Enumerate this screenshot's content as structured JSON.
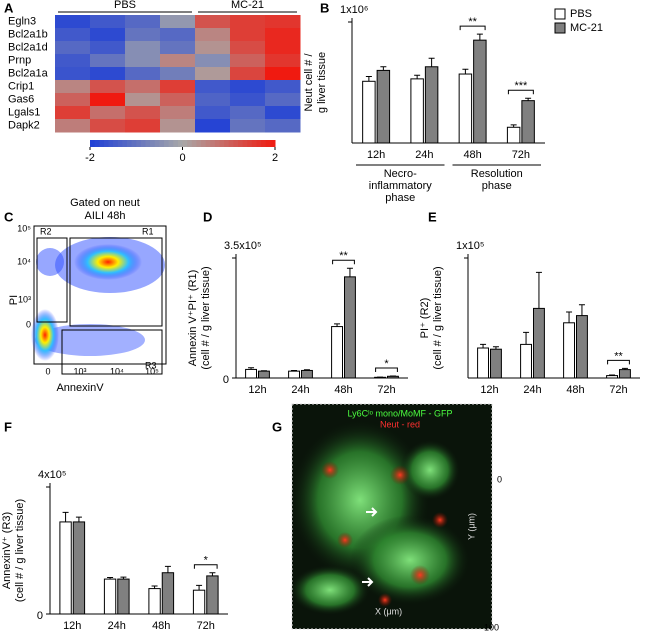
{
  "panel_labels": [
    "A",
    "B",
    "C",
    "D",
    "E",
    "F",
    "G"
  ],
  "chart_data": [
    {
      "type": "heatmap",
      "rows": [
        "Egln3",
        "Bcl2a1b",
        "Bcl2a1d",
        "Prnp",
        "Bcl2a1a",
        "Crip1",
        "Gas6",
        "Lgals1",
        "Dapk2"
      ],
      "groups": [
        {
          "name": "PBS",
          "columns": 4
        },
        {
          "name": "MC-21",
          "columns": 3
        }
      ],
      "values": [
        [
          -1.8,
          -1.5,
          -1.2,
          -0.3,
          1.2,
          1.5,
          1.6
        ],
        [
          -1.5,
          -1.8,
          -1.0,
          -1.2,
          0.5,
          1.5,
          1.8
        ],
        [
          -1.2,
          -1.5,
          -0.5,
          -1.0,
          0.3,
          1.3,
          1.8
        ],
        [
          -1.5,
          -1.0,
          -0.5,
          0.5,
          -0.5,
          1.0,
          1.6
        ],
        [
          -1.6,
          -1.8,
          -1.2,
          -0.8,
          0.2,
          1.4,
          2.0
        ],
        [
          0.5,
          1.2,
          0.8,
          1.5,
          -1.5,
          -1.8,
          -1.5
        ],
        [
          1.0,
          2.0,
          0.3,
          1.0,
          -1.3,
          -1.6,
          -1.2
        ],
        [
          1.5,
          0.8,
          1.2,
          0.6,
          -1.5,
          -1.2,
          -1.8
        ],
        [
          0.6,
          1.3,
          1.5,
          0.3,
          -1.9,
          -1.0,
          -1.2
        ]
      ],
      "colors": [
        "#1f3fd6",
        "#a8a8a8",
        "#f01a10"
      ],
      "clim": [
        -2,
        2
      ],
      "cticks": [
        -2,
        0,
        2
      ]
    },
    {
      "type": "bar",
      "categories": [
        "12h",
        "24h",
        "48h",
        "72h"
      ],
      "ylabel": [
        "Neut cell # /",
        "g liver tissue"
      ],
      "ylim": [
        0,
        1000000
      ],
      "yticks": [
        {
          "value": 1000000,
          "label": "1x10⁶"
        }
      ],
      "series": [
        {
          "name": "PBS",
          "color": "#ffffff",
          "values": [
            510000,
            530000,
            570000,
            130000
          ],
          "errors": [
            40000,
            30000,
            40000,
            20000
          ]
        },
        {
          "name": "MC-21",
          "color": "#808080",
          "values": [
            600000,
            630000,
            850000,
            350000
          ],
          "errors": [
            30000,
            70000,
            50000,
            20000
          ]
        }
      ],
      "significance": [
        {
          "category": "48h",
          "label": "**"
        },
        {
          "category": "72h",
          "label": "***"
        }
      ],
      "phases": [
        {
          "lines": [
            "Necro-",
            "inflammatory",
            "phase"
          ],
          "categories": [
            "12h",
            "24h"
          ]
        },
        {
          "lines": [
            "Resolution",
            "phase"
          ],
          "categories": [
            "48h",
            "72h"
          ]
        }
      ],
      "legend": "top-right"
    },
    {
      "type": "bar",
      "categories": [
        "12h",
        "24h",
        "48h",
        "72h"
      ],
      "ylabel": [
        "Annexin V⁺PI⁺ (R1)",
        "(cell # / g liver tissue)"
      ],
      "ylim": [
        0,
        350000
      ],
      "yticks": [
        0,
        {
          "value": 350000,
          "label": "3.5x10⁵"
        }
      ],
      "series": [
        {
          "name": "PBS",
          "color": "#ffffff",
          "values": [
            25000,
            20000,
            150000,
            2000
          ],
          "errors": [
            5000,
            2000,
            8000,
            500
          ]
        },
        {
          "name": "MC-21",
          "color": "#808080",
          "values": [
            20000,
            22000,
            295000,
            5000
          ],
          "errors": [
            1000,
            2000,
            25000,
            1000
          ]
        }
      ],
      "significance": [
        {
          "category": "48h",
          "label": "**"
        },
        {
          "category": "72h",
          "label": "*"
        }
      ]
    },
    {
      "type": "bar",
      "categories": [
        "12h",
        "24h",
        "48h",
        "72h"
      ],
      "ylabel": [
        "PI⁺ (R2)",
        "(cell # / g liver tissue)"
      ],
      "ylim": [
        0,
        100000
      ],
      "yticks": [
        {
          "value": 100000,
          "label": "1x10⁵"
        }
      ],
      "series": [
        {
          "name": "PBS",
          "color": "#ffffff",
          "values": [
            25000,
            28000,
            46000,
            2000
          ],
          "errors": [
            3000,
            10000,
            9000,
            500
          ]
        },
        {
          "name": "MC-21",
          "color": "#808080",
          "values": [
            24000,
            58000,
            52000,
            7000
          ],
          "errors": [
            2000,
            30000,
            9000,
            1000
          ]
        }
      ],
      "significance": [
        {
          "category": "72h",
          "label": "**"
        }
      ]
    },
    {
      "type": "bar",
      "categories": [
        "12h",
        "24h",
        "48h",
        "72h"
      ],
      "ylabel": [
        "AnnexinV⁺ (R3)",
        "(cell # / g liver tissue)"
      ],
      "ylim": [
        0,
        400000
      ],
      "yticks": [
        0,
        {
          "value": 400000,
          "label": "4x10⁵"
        }
      ],
      "series": [
        {
          "name": "PBS",
          "color": "#ffffff",
          "values": [
            290000,
            110000,
            80000,
            75000
          ],
          "errors": [
            30000,
            5000,
            8000,
            15000
          ]
        },
        {
          "name": "MC-21",
          "color": "#808080",
          "values": [
            290000,
            110000,
            130000,
            120000
          ],
          "errors": [
            15000,
            6000,
            20000,
            10000
          ]
        }
      ],
      "significance": [
        {
          "category": "72h",
          "label": "*"
        }
      ]
    }
  ],
  "flow_plot": {
    "title": [
      "Gated on neut",
      "AILI 48h"
    ],
    "x_label": "AnnexinV",
    "y_label": "PI",
    "gates": [
      "R1",
      "R2",
      "R3"
    ],
    "y_ticks": [
      "10⁵",
      "10⁴",
      "10³",
      "0"
    ],
    "x_ticks": [
      "0",
      "10³",
      "10⁴",
      "10⁵"
    ]
  },
  "image": {
    "legend": [
      "Ly6Cˡᵒ mono/MoMF - GFP",
      "Neut - red"
    ],
    "x_label": "X (μm)",
    "y_label": "Y (μm)",
    "ticks": [
      "0",
      "100"
    ]
  }
}
